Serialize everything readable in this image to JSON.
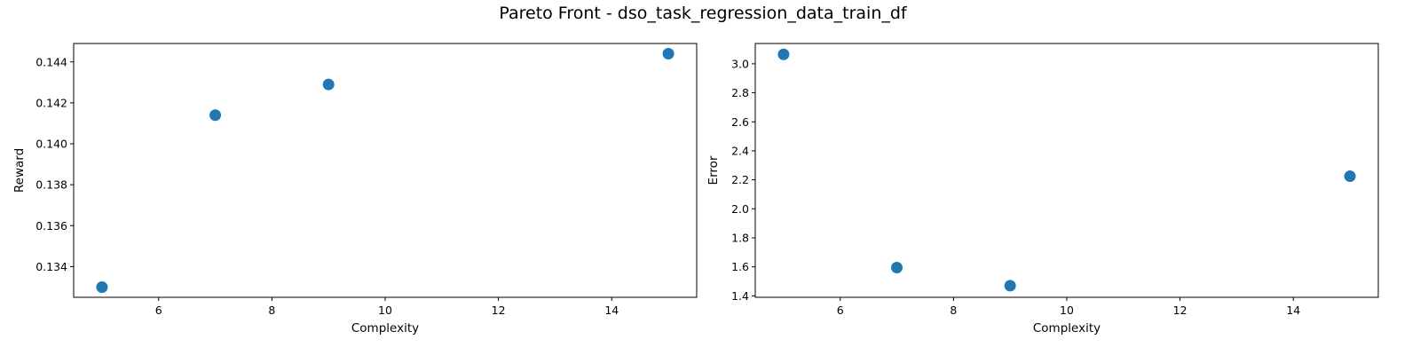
{
  "figure": {
    "title": "Pareto Front - dso_task_regression_data_train_df"
  },
  "colors": {
    "marker": "#1f77b4",
    "axes": "#000000",
    "background": "#ffffff"
  },
  "chart_data": [
    {
      "type": "scatter",
      "xlabel": "Complexity",
      "ylabel": "Reward",
      "xlim": [
        4.5,
        15.5
      ],
      "ylim": [
        0.1325,
        0.1449
      ],
      "xticks": [
        6,
        8,
        10,
        12,
        14
      ],
      "yticks": [
        0.134,
        0.136,
        0.138,
        0.14,
        0.142,
        0.144
      ],
      "ytick_labels": [
        "0.134",
        "0.136",
        "0.138",
        "0.140",
        "0.142",
        "0.144"
      ],
      "grid": false,
      "points": [
        {
          "x": 5,
          "y": 0.133
        },
        {
          "x": 7,
          "y": 0.1414
        },
        {
          "x": 9,
          "y": 0.1429
        },
        {
          "x": 15,
          "y": 0.1444
        }
      ]
    },
    {
      "type": "scatter",
      "xlabel": "Complexity",
      "ylabel": "Error",
      "xlim": [
        4.5,
        15.5
      ],
      "ylim": [
        1.39,
        3.14
      ],
      "xticks": [
        6,
        8,
        10,
        12,
        14
      ],
      "yticks": [
        1.4,
        1.6,
        1.8,
        2.0,
        2.2,
        2.4,
        2.6,
        2.8,
        3.0
      ],
      "ytick_labels": [
        "1.4",
        "1.6",
        "1.8",
        "2.0",
        "2.2",
        "2.4",
        "2.6",
        "2.8",
        "3.0"
      ],
      "grid": false,
      "points": [
        {
          "x": 5,
          "y": 3.065
        },
        {
          "x": 7,
          "y": 1.595
        },
        {
          "x": 9,
          "y": 1.47
        },
        {
          "x": 15,
          "y": 2.225
        }
      ]
    }
  ]
}
